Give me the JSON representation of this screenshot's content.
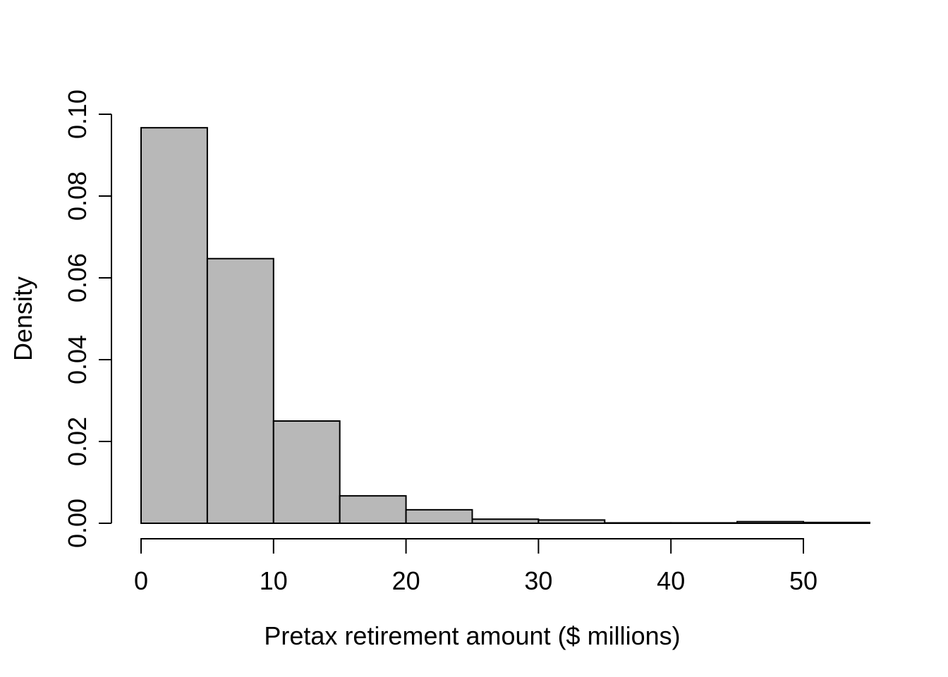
{
  "figure": {
    "background": "#ffffff",
    "bar_fill": "#b8b8b8",
    "bar_stroke": "#000000",
    "axis_color": "#000000",
    "text_color": "#000000"
  },
  "chart_data": {
    "type": "bar",
    "subtype": "histogram",
    "title": "",
    "xlabel": "Pretax retirement amount ($ millions)",
    "ylabel": "Density",
    "bin_width": 5,
    "breaks": [
      0,
      5,
      10,
      15,
      20,
      25,
      30,
      35,
      40,
      45,
      50,
      55
    ],
    "densities": [
      0.0967,
      0.0647,
      0.025,
      0.0067,
      0.0033,
      0.001,
      0.0008,
      0.0001,
      0.0001,
      0.0004,
      0.0002
    ],
    "x_ticks": [
      0,
      10,
      20,
      30,
      40,
      50
    ],
    "x_tick_labels": [
      "0",
      "10",
      "20",
      "30",
      "40",
      "50"
    ],
    "y_ticks": [
      0.0,
      0.02,
      0.04,
      0.06,
      0.08,
      0.1
    ],
    "y_tick_labels": [
      "0.00",
      "0.02",
      "0.04",
      "0.06",
      "0.08",
      "0.10"
    ],
    "xlim": [
      0,
      55
    ],
    "ylim": [
      0,
      0.1
    ],
    "grid": false,
    "legend": null
  }
}
